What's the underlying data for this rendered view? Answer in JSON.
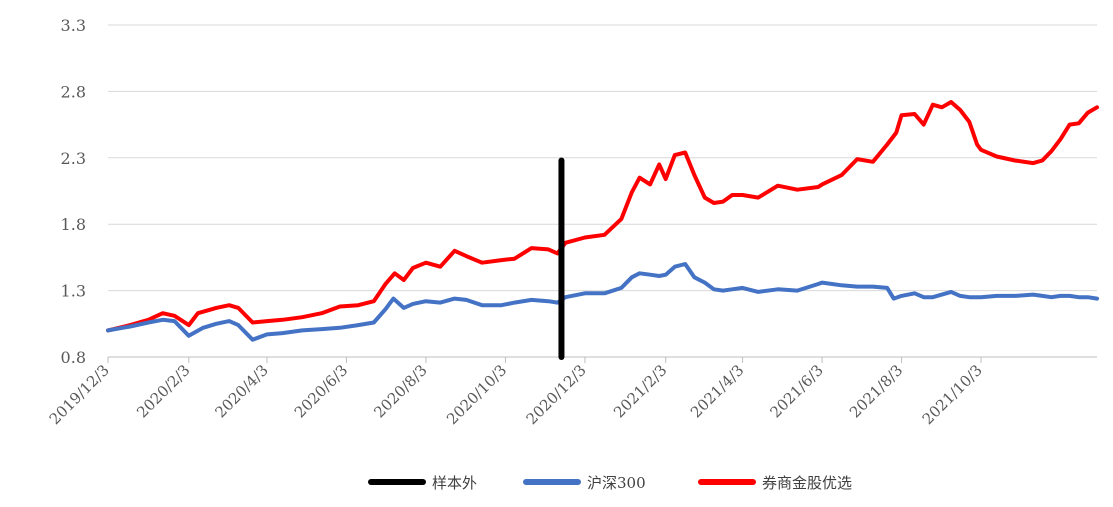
{
  "chart_data": {
    "type": "line",
    "title": "",
    "xlabel": "",
    "ylabel": "",
    "ylim": [
      0.8,
      3.3
    ],
    "yticks": [
      "0.8",
      "1.3",
      "1.8",
      "2.3",
      "2.8",
      "3.3"
    ],
    "xlim": [
      "2019-12-03",
      "2021-12-31"
    ],
    "xticks": [
      {
        "label": "2019/12/3",
        "date": "2019-12-03"
      },
      {
        "label": "2020/2/3",
        "date": "2020-02-03"
      },
      {
        "label": "2020/4/3",
        "date": "2020-04-03"
      },
      {
        "label": "2020/6/3",
        "date": "2020-06-03"
      },
      {
        "label": "2020/8/3",
        "date": "2020-08-03"
      },
      {
        "label": "2020/10/3",
        "date": "2020-10-03"
      },
      {
        "label": "2020/12/3",
        "date": "2020-12-03"
      },
      {
        "label": "2021/2/3",
        "date": "2021-02-03"
      },
      {
        "label": "2021/4/3",
        "date": "2021-04-03"
      },
      {
        "label": "2021/6/3",
        "date": "2021-06-03"
      },
      {
        "label": "2021/8/3",
        "date": "2021-08-03"
      },
      {
        "label": "2021/10/3",
        "date": "2021-10-03"
      }
    ],
    "grid": true,
    "legend_position": "bottom",
    "series": [
      {
        "name": "券商金股优选",
        "color": "#ff0000",
        "points": [
          [
            "2019-12-03",
            1.0
          ],
          [
            "2019-12-20",
            1.04
          ],
          [
            "2020-01-03",
            1.08
          ],
          [
            "2020-01-14",
            1.13
          ],
          [
            "2020-01-23",
            1.11
          ],
          [
            "2020-02-03",
            1.04
          ],
          [
            "2020-02-10",
            1.13
          ],
          [
            "2020-02-24",
            1.17
          ],
          [
            "2020-03-05",
            1.19
          ],
          [
            "2020-03-12",
            1.17
          ],
          [
            "2020-03-23",
            1.06
          ],
          [
            "2020-04-03",
            1.07
          ],
          [
            "2020-04-15",
            1.08
          ],
          [
            "2020-04-30",
            1.1
          ],
          [
            "2020-05-15",
            1.13
          ],
          [
            "2020-05-29",
            1.18
          ],
          [
            "2020-06-12",
            1.19
          ],
          [
            "2020-06-24",
            1.22
          ],
          [
            "2020-07-03",
            1.35
          ],
          [
            "2020-07-10",
            1.43
          ],
          [
            "2020-07-17",
            1.38
          ],
          [
            "2020-07-24",
            1.47
          ],
          [
            "2020-08-03",
            1.51
          ],
          [
            "2020-08-14",
            1.48
          ],
          [
            "2020-08-25",
            1.6
          ],
          [
            "2020-09-03",
            1.56
          ],
          [
            "2020-09-15",
            1.51
          ],
          [
            "2020-09-30",
            1.53
          ],
          [
            "2020-10-10",
            1.54
          ],
          [
            "2020-10-23",
            1.62
          ],
          [
            "2020-11-05",
            1.61
          ],
          [
            "2020-11-12",
            1.58
          ],
          [
            "2020-11-18",
            1.66
          ],
          [
            "2020-12-03",
            1.7
          ],
          [
            "2020-12-18",
            1.72
          ],
          [
            "2020-12-31",
            1.84
          ],
          [
            "2021-01-08",
            2.04
          ],
          [
            "2021-01-14",
            2.15
          ],
          [
            "2021-01-22",
            2.1
          ],
          [
            "2021-01-29",
            2.25
          ],
          [
            "2021-02-03",
            2.14
          ],
          [
            "2021-02-10",
            2.32
          ],
          [
            "2021-02-18",
            2.34
          ],
          [
            "2021-02-25",
            2.17
          ],
          [
            "2021-03-05",
            2.0
          ],
          [
            "2021-03-12",
            1.96
          ],
          [
            "2021-03-19",
            1.97
          ],
          [
            "2021-03-26",
            2.02
          ],
          [
            "2021-04-03",
            2.02
          ],
          [
            "2021-04-15",
            2.0
          ],
          [
            "2021-04-30",
            2.09
          ],
          [
            "2021-05-15",
            2.06
          ],
          [
            "2021-05-31",
            2.08
          ],
          [
            "2021-06-03",
            2.1
          ],
          [
            "2021-06-18",
            2.17
          ],
          [
            "2021-06-30",
            2.29
          ],
          [
            "2021-07-12",
            2.27
          ],
          [
            "2021-07-23",
            2.4
          ],
          [
            "2021-07-30",
            2.49
          ],
          [
            "2021-08-03",
            2.62
          ],
          [
            "2021-08-13",
            2.63
          ],
          [
            "2021-08-20",
            2.55
          ],
          [
            "2021-08-27",
            2.7
          ],
          [
            "2021-09-03",
            2.68
          ],
          [
            "2021-09-10",
            2.72
          ],
          [
            "2021-09-17",
            2.66
          ],
          [
            "2021-09-24",
            2.57
          ],
          [
            "2021-09-30",
            2.4
          ],
          [
            "2021-10-03",
            2.36
          ],
          [
            "2021-10-15",
            2.31
          ],
          [
            "2021-10-29",
            2.28
          ],
          [
            "2021-11-12",
            2.26
          ],
          [
            "2021-11-19",
            2.28
          ],
          [
            "2021-11-26",
            2.35
          ],
          [
            "2021-12-03",
            2.44
          ],
          [
            "2021-12-10",
            2.55
          ],
          [
            "2021-12-17",
            2.56
          ],
          [
            "2021-12-24",
            2.64
          ],
          [
            "2021-12-31",
            2.68
          ]
        ]
      },
      {
        "name": "沪深300",
        "color": "#4472c4",
        "points": [
          [
            "2019-12-03",
            1.0
          ],
          [
            "2019-12-20",
            1.03
          ],
          [
            "2020-01-03",
            1.06
          ],
          [
            "2020-01-14",
            1.08
          ],
          [
            "2020-01-23",
            1.07
          ],
          [
            "2020-02-03",
            0.96
          ],
          [
            "2020-02-14",
            1.02
          ],
          [
            "2020-02-24",
            1.05
          ],
          [
            "2020-03-05",
            1.07
          ],
          [
            "2020-03-12",
            1.04
          ],
          [
            "2020-03-23",
            0.93
          ],
          [
            "2020-04-03",
            0.97
          ],
          [
            "2020-04-15",
            0.98
          ],
          [
            "2020-04-30",
            1.0
          ],
          [
            "2020-05-15",
            1.01
          ],
          [
            "2020-05-29",
            1.02
          ],
          [
            "2020-06-12",
            1.04
          ],
          [
            "2020-06-24",
            1.06
          ],
          [
            "2020-07-03",
            1.16
          ],
          [
            "2020-07-09",
            1.24
          ],
          [
            "2020-07-17",
            1.17
          ],
          [
            "2020-07-24",
            1.2
          ],
          [
            "2020-08-03",
            1.22
          ],
          [
            "2020-08-14",
            1.21
          ],
          [
            "2020-08-25",
            1.24
          ],
          [
            "2020-09-03",
            1.23
          ],
          [
            "2020-09-15",
            1.19
          ],
          [
            "2020-09-30",
            1.19
          ],
          [
            "2020-10-10",
            1.21
          ],
          [
            "2020-10-23",
            1.23
          ],
          [
            "2020-11-05",
            1.22
          ],
          [
            "2020-11-12",
            1.21
          ],
          [
            "2020-11-18",
            1.25
          ],
          [
            "2020-12-03",
            1.28
          ],
          [
            "2020-12-18",
            1.28
          ],
          [
            "2020-12-31",
            1.32
          ],
          [
            "2021-01-08",
            1.4
          ],
          [
            "2021-01-14",
            1.43
          ],
          [
            "2021-01-22",
            1.42
          ],
          [
            "2021-01-29",
            1.41
          ],
          [
            "2021-02-03",
            1.42
          ],
          [
            "2021-02-10",
            1.48
          ],
          [
            "2021-02-18",
            1.5
          ],
          [
            "2021-02-25",
            1.4
          ],
          [
            "2021-03-05",
            1.36
          ],
          [
            "2021-03-12",
            1.31
          ],
          [
            "2021-03-19",
            1.3
          ],
          [
            "2021-03-26",
            1.31
          ],
          [
            "2021-04-03",
            1.32
          ],
          [
            "2021-04-15",
            1.29
          ],
          [
            "2021-04-30",
            1.31
          ],
          [
            "2021-05-15",
            1.3
          ],
          [
            "2021-05-31",
            1.35
          ],
          [
            "2021-06-03",
            1.36
          ],
          [
            "2021-06-18",
            1.34
          ],
          [
            "2021-06-30",
            1.33
          ],
          [
            "2021-07-12",
            1.33
          ],
          [
            "2021-07-23",
            1.32
          ],
          [
            "2021-07-28",
            1.24
          ],
          [
            "2021-08-03",
            1.26
          ],
          [
            "2021-08-13",
            1.28
          ],
          [
            "2021-08-20",
            1.25
          ],
          [
            "2021-08-27",
            1.25
          ],
          [
            "2021-09-03",
            1.27
          ],
          [
            "2021-09-10",
            1.29
          ],
          [
            "2021-09-17",
            1.26
          ],
          [
            "2021-09-24",
            1.25
          ],
          [
            "2021-09-30",
            1.25
          ],
          [
            "2021-10-03",
            1.25
          ],
          [
            "2021-10-15",
            1.26
          ],
          [
            "2021-10-29",
            1.26
          ],
          [
            "2021-11-12",
            1.27
          ],
          [
            "2021-11-19",
            1.26
          ],
          [
            "2021-11-26",
            1.25
          ],
          [
            "2021-12-03",
            1.26
          ],
          [
            "2021-12-10",
            1.26
          ],
          [
            "2021-12-17",
            1.25
          ],
          [
            "2021-12-24",
            1.25
          ],
          [
            "2021-12-31",
            1.24
          ]
        ]
      }
    ],
    "marker": {
      "name": "样本外",
      "color": "#000000",
      "date": "2020-11-15",
      "y_range": [
        0.8,
        2.28
      ]
    }
  },
  "legend": [
    {
      "label": "样本外",
      "color": "#000000"
    },
    {
      "label": "沪深300",
      "color": "#4472c4"
    },
    {
      "label": "券商金股优选",
      "color": "#ff0000"
    }
  ]
}
